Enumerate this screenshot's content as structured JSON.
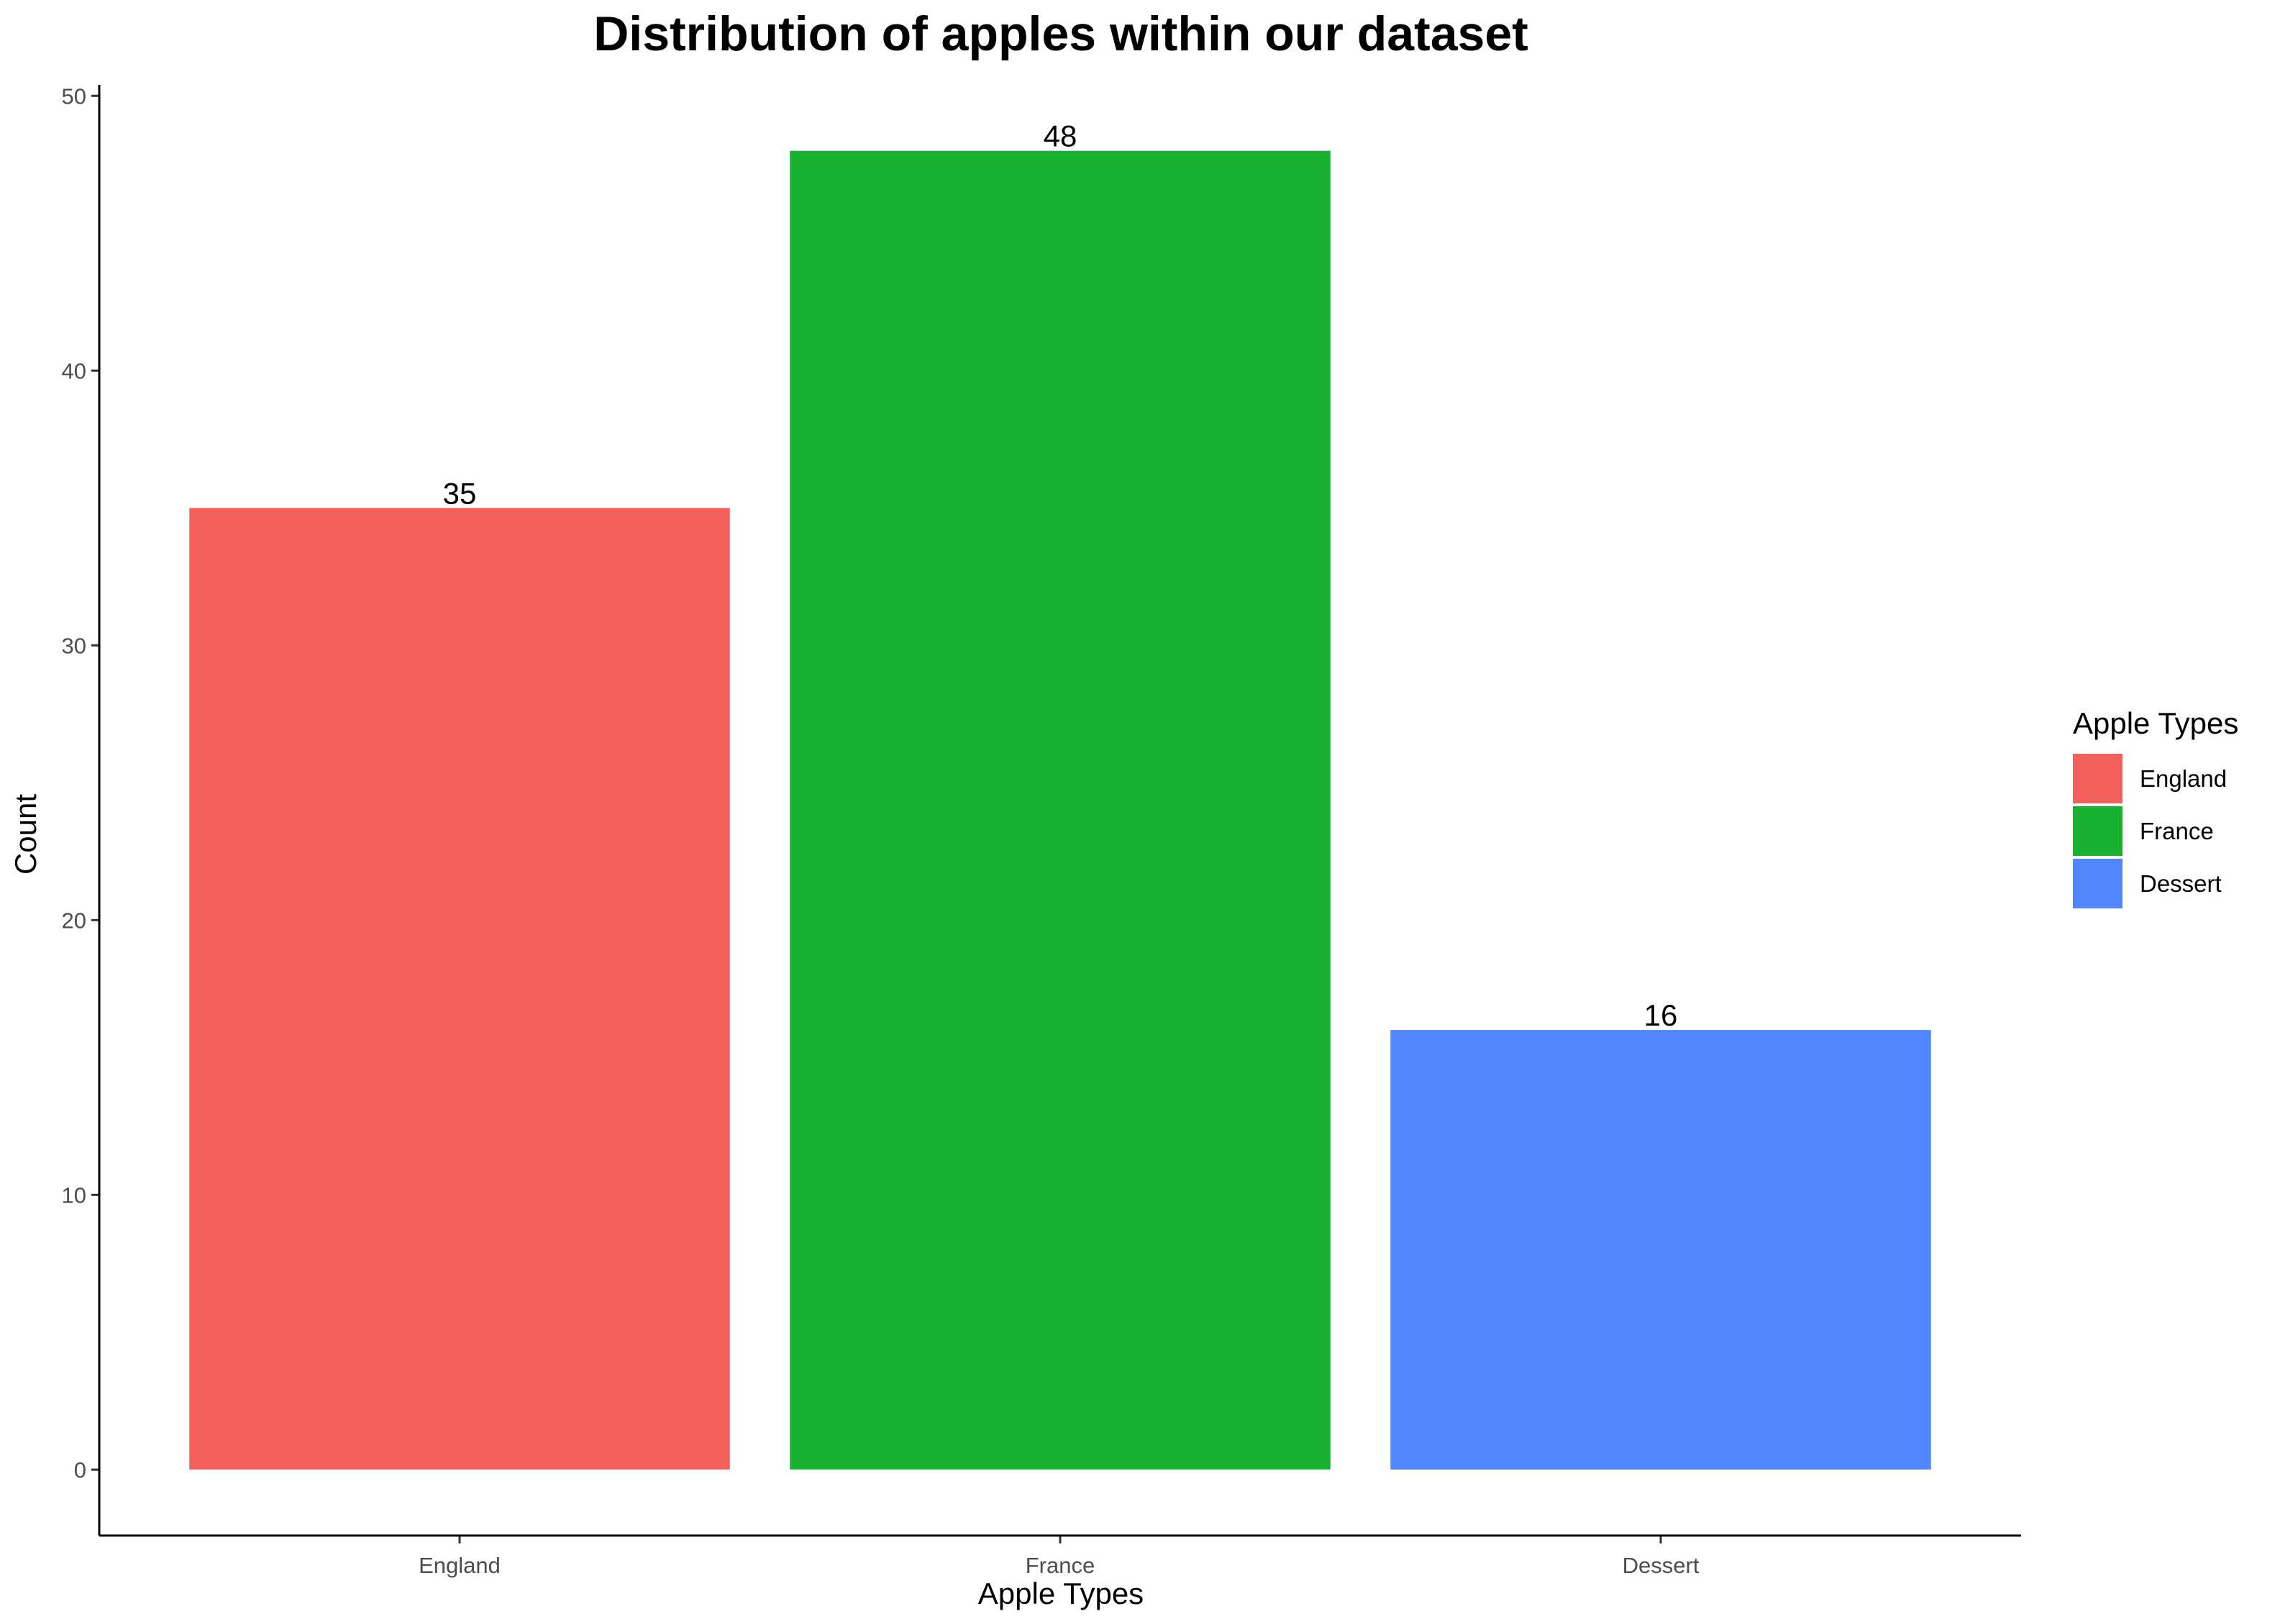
{
  "chart_data": {
    "type": "bar",
    "title": "Distribution of apples within our dataset",
    "xlabel": "Apple Types",
    "ylabel": "Count",
    "categories": [
      "England",
      "France",
      "Dessert"
    ],
    "values": [
      35,
      48,
      16
    ],
    "data_labels": [
      "35",
      "48",
      "16"
    ],
    "colors": [
      "#F35F5B",
      "#19B12F",
      "#5086FF"
    ],
    "ylim": [
      -2.4,
      50.4
    ],
    "yticks": [
      0,
      10,
      20,
      30,
      40,
      50
    ],
    "grid": false,
    "legend": {
      "title": "Apple Types",
      "position": "right",
      "entries": [
        "England",
        "France",
        "Dessert"
      ]
    }
  }
}
